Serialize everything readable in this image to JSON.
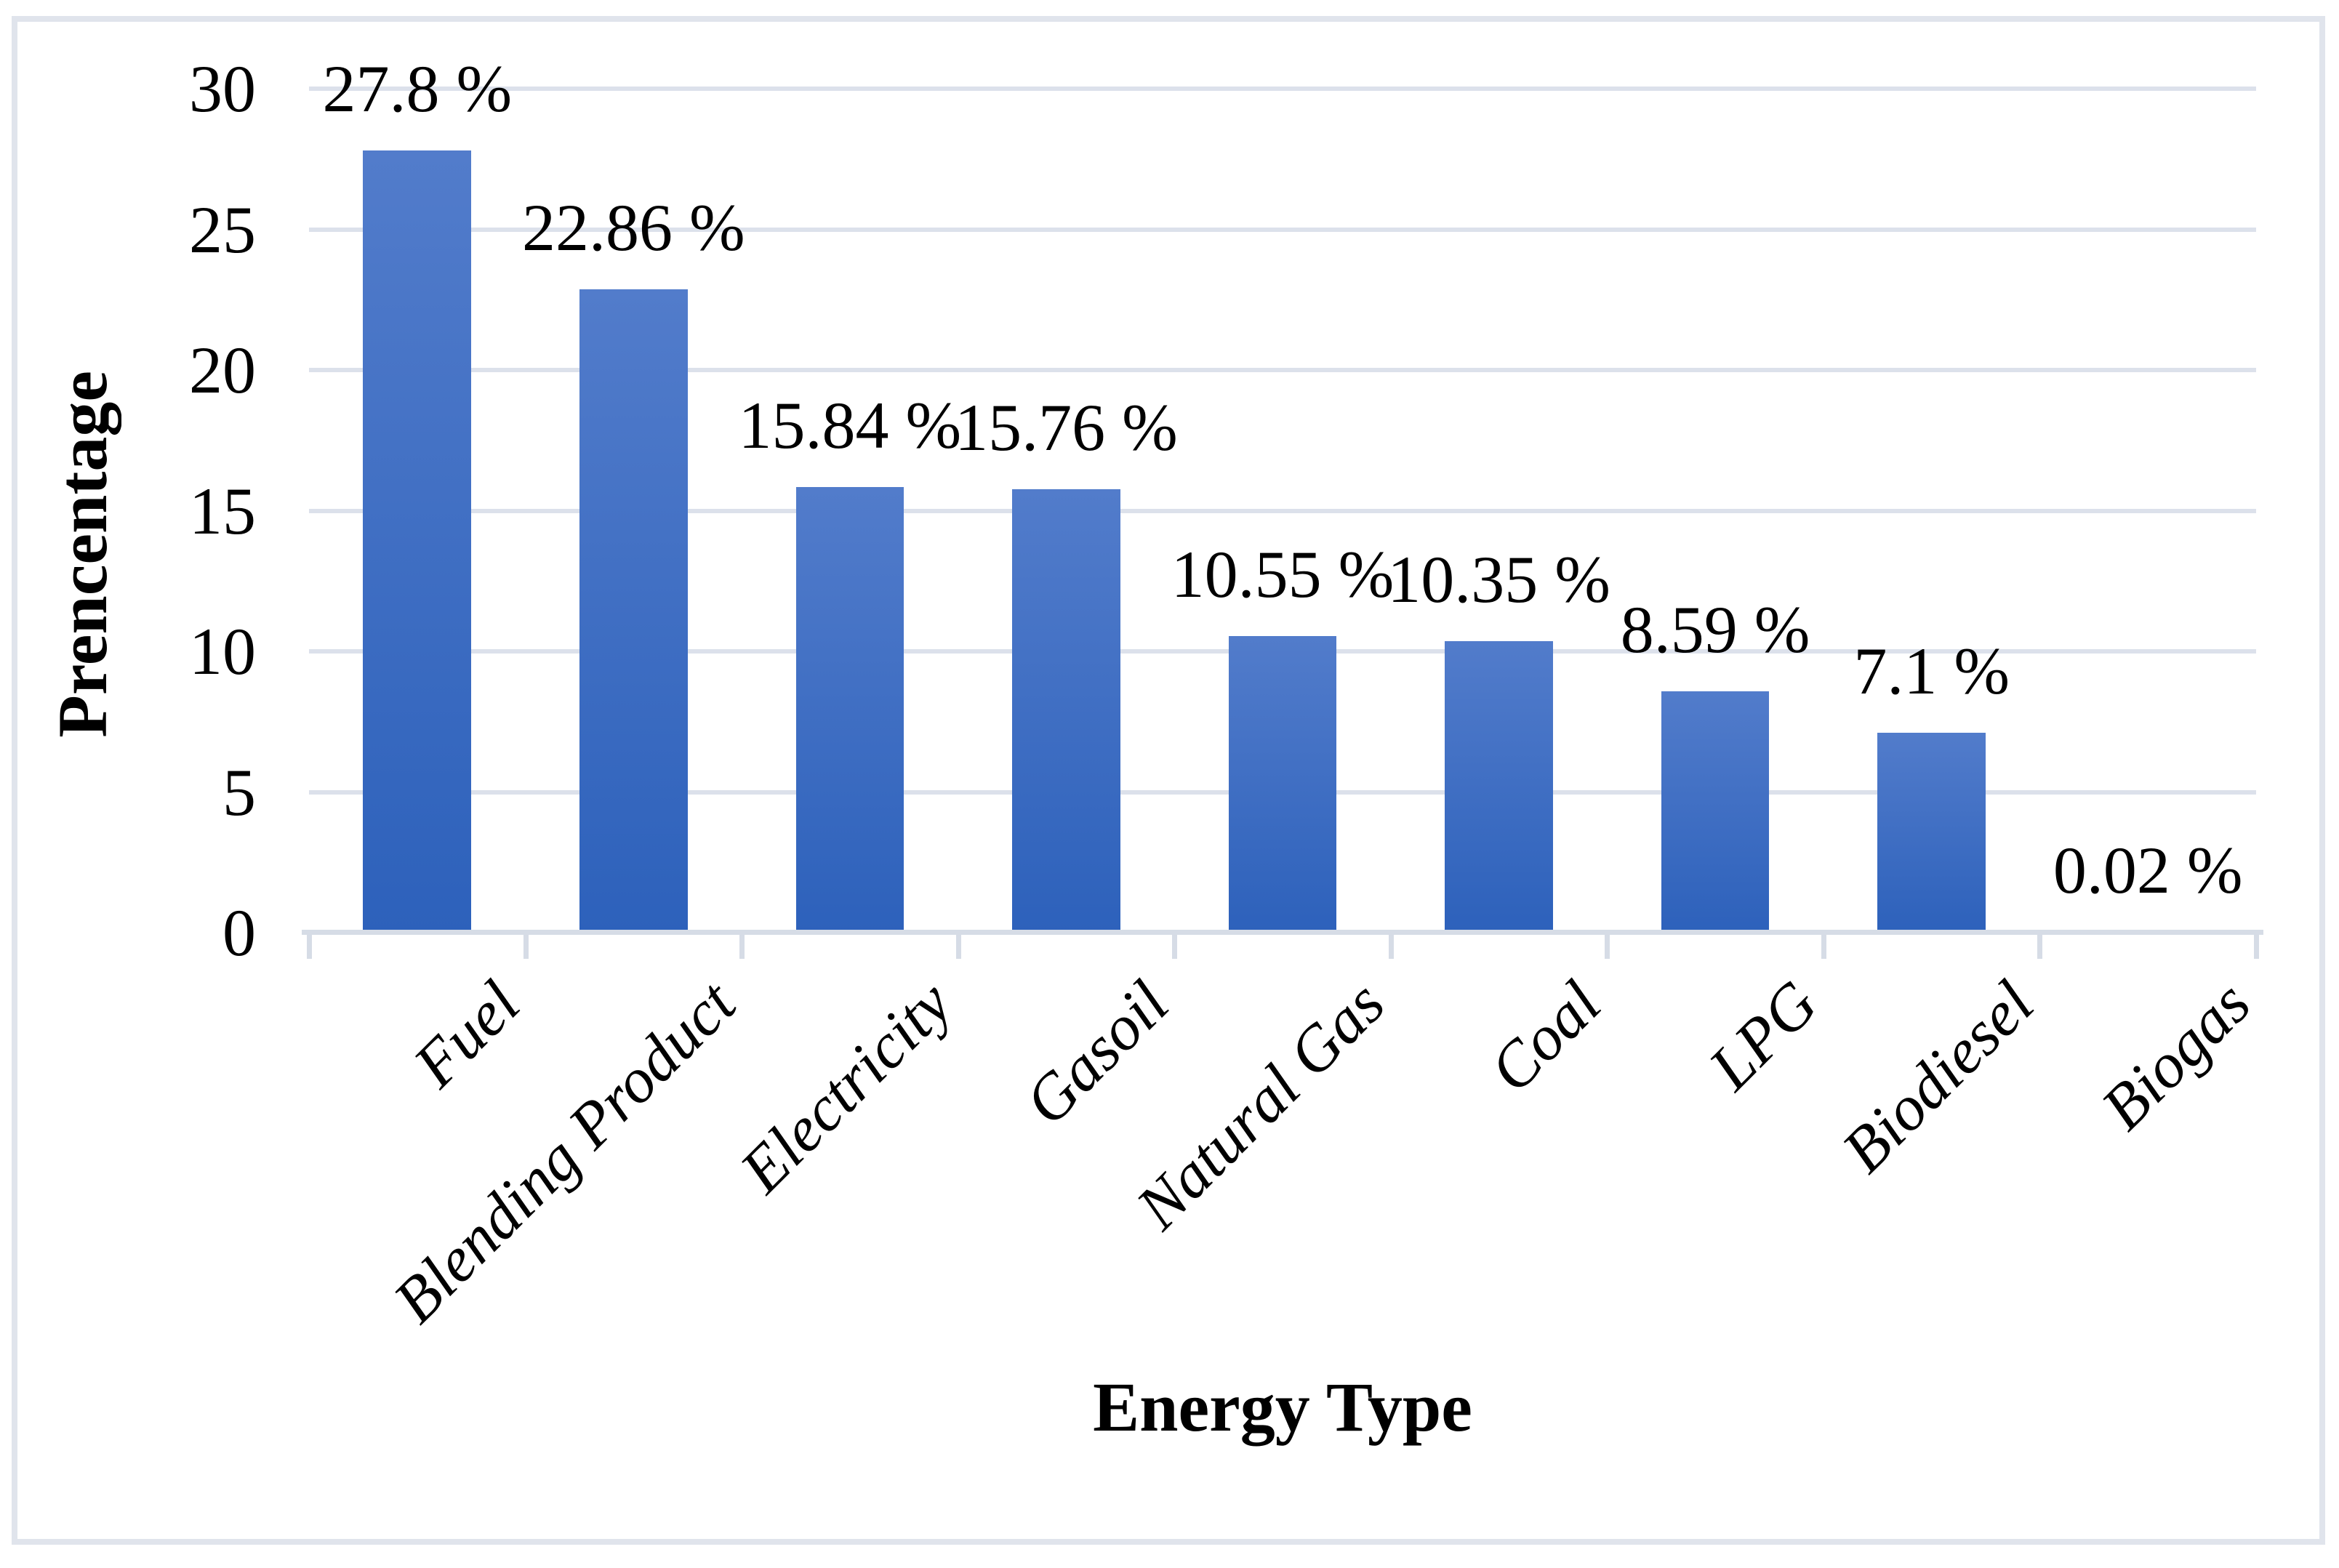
{
  "chart_data": {
    "type": "bar",
    "title": "",
    "categories": [
      "Fuel",
      "Blending Product",
      "Electricity",
      "Gasoil",
      "Natural Gas",
      "Coal",
      "LPG",
      "Biodiesel",
      "Biogas"
    ],
    "values": [
      27.8,
      22.86,
      15.84,
      15.76,
      10.55,
      10.35,
      8.59,
      7.1,
      0.02
    ],
    "data_labels": [
      "27.8 %",
      "22.86 %",
      "15.84 %",
      "15.76 %",
      "10.55 %",
      "10.35 %",
      "8.59 %",
      "7.1 %",
      "0.02 %"
    ],
    "xlabel": "Energy Type",
    "ylabel": "Prencentage",
    "ylim": [
      0,
      30
    ],
    "yticks": [
      0,
      5,
      10,
      15,
      20,
      25,
      30
    ],
    "grid": true,
    "legend": false
  },
  "colors": {
    "bar_gradient_top": "#527CCB",
    "bar_gradient_bottom": "#2D61BB",
    "gridline": "#dce1eb",
    "axis_line": "#d6dce6",
    "frame_border": "#e0e4ec",
    "text": "#000000",
    "background": "#ffffff"
  }
}
